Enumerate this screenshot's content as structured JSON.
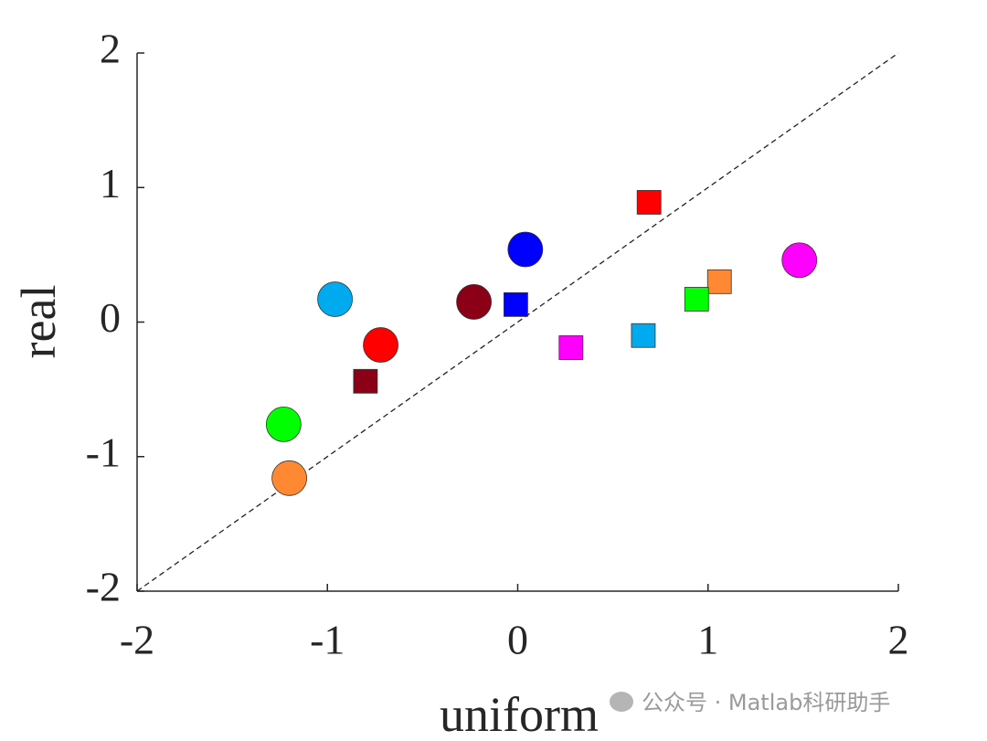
{
  "chart_data": {
    "type": "scatter",
    "xlabel": "uniform",
    "ylabel": "real",
    "xlim": [
      -2,
      2
    ],
    "ylim": [
      -2,
      2
    ],
    "xticks": [
      -2,
      -1,
      0,
      1,
      2
    ],
    "yticks": [
      -2,
      -1,
      0,
      1,
      2
    ],
    "series": [
      {
        "marker": "circle",
        "colors": [
          "#0000ff",
          "#00aaee",
          "#8b0016",
          "#ff0000",
          "#00ff00",
          "#ff8833",
          "#ff00ff"
        ],
        "x": [
          0.04,
          -0.96,
          -0.23,
          -0.72,
          -1.23,
          -1.2,
          1.48
        ],
        "values": [
          0.54,
          0.17,
          0.15,
          -0.17,
          -0.76,
          -1.16,
          0.46
        ]
      },
      {
        "marker": "square",
        "colors": [
          "#ff0000",
          "#ff8833",
          "#00ff00",
          "#0000ff",
          "#ff00ff",
          "#00aaee",
          "#8b0016"
        ],
        "x": [
          0.69,
          1.06,
          0.94,
          -0.01,
          0.28,
          0.66,
          -0.8
        ],
        "values": [
          0.89,
          0.3,
          0.17,
          0.13,
          -0.19,
          -0.1,
          -0.44
        ]
      }
    ],
    "watermark": "公众号 · Matlab科研助手"
  }
}
